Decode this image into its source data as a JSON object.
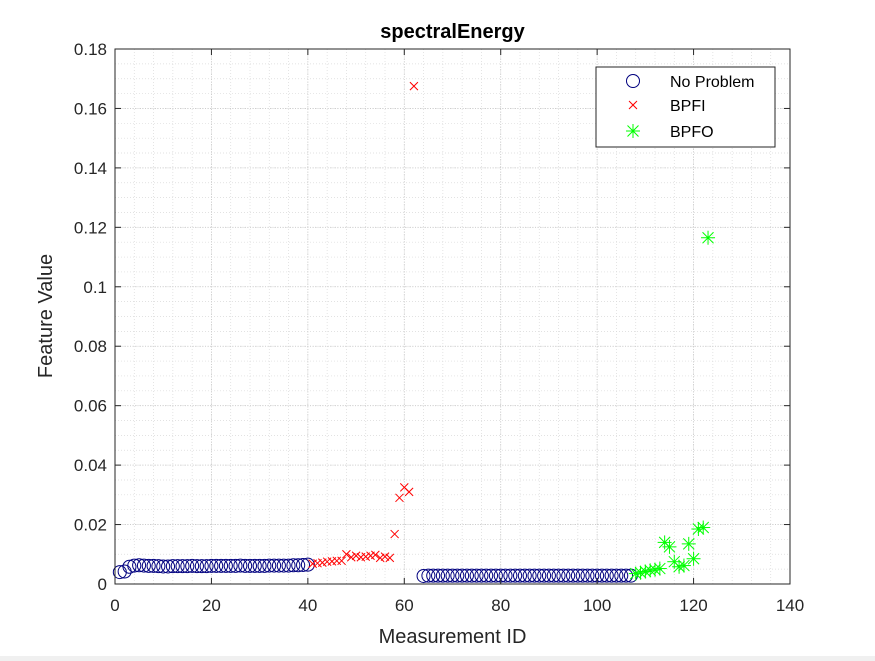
{
  "chart_data": {
    "type": "scatter",
    "title": "spectralEnergy",
    "xlabel": "Measurement ID",
    "ylabel": "Feature Value",
    "xlim": [
      0,
      140
    ],
    "ylim": [
      0,
      0.18
    ],
    "xticks": [
      0,
      20,
      40,
      60,
      80,
      100,
      120,
      140
    ],
    "xtick_labels": [
      "0",
      "20",
      "40",
      "60",
      "80",
      "100",
      "120",
      "140"
    ],
    "yticks": [
      0,
      0.02,
      0.04,
      0.06,
      0.08,
      0.1,
      0.12,
      0.14,
      0.16,
      0.18
    ],
    "ytick_labels": [
      "0",
      "0.02",
      "0.04",
      "0.06",
      "0.08",
      "0.1",
      "0.12",
      "0.14",
      "0.16",
      "0.18"
    ],
    "grid": true,
    "minor_grid": true,
    "legend_position": "top-right",
    "series": [
      {
        "name": "No Problem",
        "marker": "circle",
        "color": "#00007f",
        "points": [
          [
            1,
            0.004
          ],
          [
            2,
            0.0042
          ],
          [
            3,
            0.0058
          ],
          [
            4,
            0.0062
          ],
          [
            5,
            0.0063
          ],
          [
            6,
            0.0062
          ],
          [
            7,
            0.0061
          ],
          [
            8,
            0.0061
          ],
          [
            9,
            0.006
          ],
          [
            10,
            0.0059
          ],
          [
            11,
            0.0059
          ],
          [
            12,
            0.006
          ],
          [
            13,
            0.006
          ],
          [
            14,
            0.006
          ],
          [
            15,
            0.006
          ],
          [
            16,
            0.0061
          ],
          [
            17,
            0.006
          ],
          [
            18,
            0.006
          ],
          [
            19,
            0.006
          ],
          [
            20,
            0.0061
          ],
          [
            21,
            0.0061
          ],
          [
            22,
            0.0061
          ],
          [
            23,
            0.0061
          ],
          [
            24,
            0.0061
          ],
          [
            25,
            0.0061
          ],
          [
            26,
            0.0062
          ],
          [
            27,
            0.0061
          ],
          [
            28,
            0.0061
          ],
          [
            29,
            0.0061
          ],
          [
            30,
            0.0061
          ],
          [
            31,
            0.0061
          ],
          [
            32,
            0.0062
          ],
          [
            33,
            0.0062
          ],
          [
            34,
            0.0062
          ],
          [
            35,
            0.0062
          ],
          [
            36,
            0.0062
          ],
          [
            37,
            0.0063
          ],
          [
            38,
            0.0063
          ],
          [
            39,
            0.0064
          ],
          [
            40,
            0.0065
          ],
          [
            64,
            0.0027
          ],
          [
            65,
            0.0028
          ],
          [
            66,
            0.0028
          ],
          [
            67,
            0.0028
          ],
          [
            68,
            0.0028
          ],
          [
            69,
            0.0028
          ],
          [
            70,
            0.0028
          ],
          [
            71,
            0.0028
          ],
          [
            72,
            0.0028
          ],
          [
            73,
            0.0028
          ],
          [
            74,
            0.0028
          ],
          [
            75,
            0.0028
          ],
          [
            76,
            0.0028
          ],
          [
            77,
            0.0028
          ],
          [
            78,
            0.0028
          ],
          [
            79,
            0.0028
          ],
          [
            80,
            0.0028
          ],
          [
            81,
            0.0028
          ],
          [
            82,
            0.0028
          ],
          [
            83,
            0.0028
          ],
          [
            84,
            0.0028
          ],
          [
            85,
            0.0028
          ],
          [
            86,
            0.0028
          ],
          [
            87,
            0.0028
          ],
          [
            88,
            0.0028
          ],
          [
            89,
            0.0028
          ],
          [
            90,
            0.0028
          ],
          [
            91,
            0.0028
          ],
          [
            92,
            0.0028
          ],
          [
            93,
            0.0028
          ],
          [
            94,
            0.0028
          ],
          [
            95,
            0.0028
          ],
          [
            96,
            0.0028
          ],
          [
            97,
            0.0028
          ],
          [
            98,
            0.0028
          ],
          [
            99,
            0.0028
          ],
          [
            100,
            0.0028
          ],
          [
            101,
            0.0028
          ],
          [
            102,
            0.0028
          ],
          [
            103,
            0.0028
          ],
          [
            104,
            0.0028
          ],
          [
            105,
            0.0028
          ],
          [
            106,
            0.0028
          ],
          [
            107,
            0.0028
          ]
        ]
      },
      {
        "name": "BPFI",
        "marker": "x",
        "color": "#ff0000",
        "points": [
          [
            41,
            0.0068
          ],
          [
            42,
            0.007
          ],
          [
            43,
            0.0072
          ],
          [
            44,
            0.0075
          ],
          [
            45,
            0.0076
          ],
          [
            46,
            0.0078
          ],
          [
            47,
            0.0078
          ],
          [
            48,
            0.01
          ],
          [
            49,
            0.009
          ],
          [
            50,
            0.0095
          ],
          [
            51,
            0.009
          ],
          [
            52,
            0.0092
          ],
          [
            53,
            0.0095
          ],
          [
            54,
            0.0098
          ],
          [
            55,
            0.0088
          ],
          [
            56,
            0.0092
          ],
          [
            57,
            0.0088
          ],
          [
            58,
            0.0168
          ],
          [
            59,
            0.029
          ],
          [
            60,
            0.0325
          ],
          [
            61,
            0.031
          ],
          [
            62,
            0.1675
          ]
        ]
      },
      {
        "name": "BPFO",
        "marker": "asterisk",
        "color": "#00ff00",
        "points": [
          [
            108,
            0.0035
          ],
          [
            109,
            0.0038
          ],
          [
            110,
            0.0042
          ],
          [
            111,
            0.0046
          ],
          [
            112,
            0.0048
          ],
          [
            113,
            0.0052
          ],
          [
            114,
            0.014
          ],
          [
            115,
            0.0125
          ],
          [
            116,
            0.0075
          ],
          [
            117,
            0.0058
          ],
          [
            118,
            0.0062
          ],
          [
            119,
            0.0135
          ],
          [
            120,
            0.0085
          ],
          [
            121,
            0.0185
          ],
          [
            122,
            0.019
          ],
          [
            123,
            0.1165
          ]
        ]
      }
    ]
  }
}
